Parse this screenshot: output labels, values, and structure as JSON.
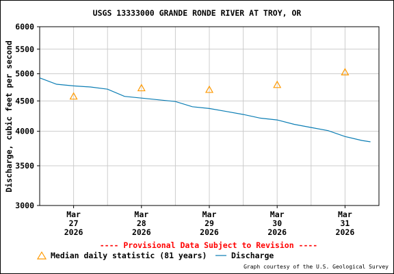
{
  "chart_data": {
    "type": "line",
    "title": "USGS 13333000 GRANDE RONDE RIVER AT TROY, OR",
    "ylabel": "Discharge, cubic feet per second",
    "y_scale": "log",
    "ylim": [
      3000,
      6000
    ],
    "y_ticks": [
      3000,
      3500,
      4000,
      4500,
      5000,
      5500,
      6000
    ],
    "y_tick_labels": [
      "3000",
      "3500",
      "4000",
      "4500",
      "5000",
      "5500",
      "6000"
    ],
    "xlim": [
      "2026-03-26T12:00",
      "2026-03-31T12:00"
    ],
    "x_ticks": [
      {
        "date": "2026-03-27",
        "label": [
          "Mar",
          "27",
          "2026"
        ]
      },
      {
        "date": "2026-03-28",
        "label": [
          "Mar",
          "28",
          "2026"
        ]
      },
      {
        "date": "2026-03-29",
        "label": [
          "Mar",
          "29",
          "2026"
        ]
      },
      {
        "date": "2026-03-30",
        "label": [
          "Mar",
          "30",
          "2026"
        ]
      },
      {
        "date": "2026-03-31",
        "label": [
          "Mar",
          "31",
          "2026"
        ]
      }
    ],
    "grid": true,
    "notice": "---- Provisional Data Subject to Revision ----",
    "series": [
      {
        "name": "Discharge",
        "color": "#0a7db4",
        "x": [
          "2026-03-26T12:00",
          "2026-03-26T18:00",
          "2026-03-27T00:00",
          "2026-03-27T06:00",
          "2026-03-27T12:00",
          "2026-03-27T18:00",
          "2026-03-28T00:00",
          "2026-03-28T06:00",
          "2026-03-28T12:00",
          "2026-03-28T18:00",
          "2026-03-29T00:00",
          "2026-03-29T06:00",
          "2026-03-29T12:00",
          "2026-03-29T18:00",
          "2026-03-30T00:00",
          "2026-03-30T06:00",
          "2026-03-30T12:00",
          "2026-03-30T18:00",
          "2026-03-31T00:00",
          "2026-03-31T06:00",
          "2026-03-31T09:00"
        ],
        "values": [
          4920,
          4800,
          4770,
          4750,
          4710,
          4580,
          4550,
          4520,
          4490,
          4400,
          4370,
          4320,
          4270,
          4210,
          4180,
          4110,
          4060,
          4010,
          3920,
          3860,
          3840
        ]
      },
      {
        "name": "Median daily statistic (81 years)",
        "color": "#ff9900",
        "marker": "triangle",
        "x": [
          "2026-03-27",
          "2026-03-28",
          "2026-03-29",
          "2026-03-30",
          "2026-03-31"
        ],
        "values": [
          4580,
          4730,
          4700,
          4790,
          5030
        ]
      }
    ]
  },
  "legend": {
    "median_label": "Median daily statistic (81 years)",
    "discharge_label": "Discharge"
  },
  "credit": "Graph courtesy of the U.S. Geological Survey",
  "colors": {
    "provisional": "#ff0000",
    "grid": "#cccccc"
  }
}
